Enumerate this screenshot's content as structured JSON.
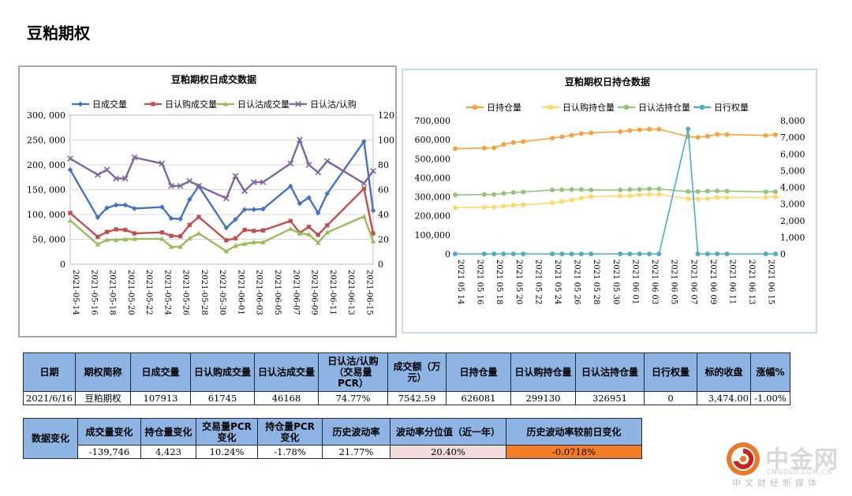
{
  "page": {
    "title": "豆粕期权"
  },
  "chart_data": [
    {
      "type": "line",
      "title": "豆粕期权日成交数据",
      "x": [
        "2021-05-14",
        "2021-05-17",
        "2021-05-18",
        "2021-05-19",
        "2021-05-20",
        "2021-05-21",
        "2021-05-24",
        "2021-05-25",
        "2021-05-26",
        "2021-05-27",
        "2021-05-28",
        "2021-05-31",
        "2021-06-01",
        "2021-06-02",
        "2021-06-03",
        "2021-06-04",
        "2021-06-07",
        "2021-06-08",
        "2021-06-09",
        "2021-06-10",
        "2021-06-11",
        "2021-06-15",
        "2021-06-16"
      ],
      "x_tick_labels": [
        "2021-05-14",
        "2021-05-16",
        "2021-05-18",
        "2021-05-20",
        "2021-05-22",
        "2021-05-24",
        "2021-05-26",
        "2021-05-28",
        "2021-05-30",
        "2021-06-01",
        "2021-06-03",
        "2021-06-05",
        "2021-06-07",
        "2021-06-09",
        "2021-06-11",
        "2021-06-13",
        "2021-06-15"
      ],
      "x_range": [
        "2021-05-14",
        "2021-06-16"
      ],
      "y_left": {
        "ticks": [
          "0",
          "50, 000",
          "100, 000",
          "150, 000",
          "200, 000",
          "250, 000",
          "300, 000"
        ],
        "ylim": [
          0,
          300000
        ]
      },
      "y_right": {
        "ticks": [
          "0",
          "20",
          "40",
          "60",
          "80",
          "100",
          "120"
        ],
        "ylim": [
          0,
          120
        ]
      },
      "legend_position": "top",
      "grid": true,
      "series": [
        {
          "name": "日成交量",
          "color": "#4472c4",
          "marker": "diamond",
          "axis": "left",
          "values": [
            190000,
            94000,
            113000,
            119000,
            119000,
            112000,
            115000,
            92000,
            91000,
            130000,
            157000,
            73000,
            90000,
            110000,
            110000,
            111000,
            157000,
            122000,
            134000,
            103000,
            142000,
            247000,
            108000
          ]
        },
        {
          "name": "日认购成交量",
          "color": "#c0504d",
          "marker": "square",
          "axis": "left",
          "values": [
            103000,
            55000,
            65000,
            70000,
            69000,
            62000,
            64000,
            57000,
            56000,
            79000,
            95000,
            48000,
            52000,
            69000,
            67000,
            68000,
            87000,
            63000,
            75000,
            59000,
            78000,
            152000,
            62000
          ]
        },
        {
          "name": "日认沽成交量",
          "color": "#9bbb59",
          "marker": "triangle",
          "axis": "left",
          "values": [
            88000,
            40000,
            49000,
            49000,
            50000,
            51000,
            51000,
            35000,
            35000,
            52000,
            62000,
            26000,
            37000,
            41000,
            44000,
            44000,
            71000,
            62000,
            60000,
            43000,
            64000,
            96000,
            46000
          ]
        },
        {
          "name": "日认沽/认购",
          "color": "#8064a2",
          "marker": "x",
          "axis": "right",
          "values": [
            85,
            72,
            76,
            69,
            69,
            86,
            81,
            63,
            63,
            67,
            63,
            53,
            71,
            59,
            66,
            66,
            81,
            100,
            80,
            74,
            83,
            65,
            75
          ]
        }
      ]
    },
    {
      "type": "line",
      "title": "豆粕期权日持仓数据",
      "x": [
        "2021-05-14",
        "2021-05-17",
        "2021-05-18",
        "2021-05-19",
        "2021-05-20",
        "2021-05-21",
        "2021-05-24",
        "2021-05-25",
        "2021-05-26",
        "2021-05-27",
        "2021-05-28",
        "2021-05-31",
        "2021-06-01",
        "2021-06-02",
        "2021-06-03",
        "2021-06-04",
        "2021-06-07",
        "2021-06-08",
        "2021-06-09",
        "2021-06-10",
        "2021-06-11",
        "2021-06-15",
        "2021-06-16"
      ],
      "x_tick_labels": [
        "2021-05-14",
        "2021-05-16",
        "2021-05-18",
        "2021-05-20",
        "2021-05-22",
        "2021-05-24",
        "2021-05-26",
        "2021-05-28",
        "2021-05-30",
        "2021-06-01",
        "2021-06-03",
        "2021-06-05",
        "2021-06-07",
        "2021-06-09",
        "2021-06-11",
        "2021-06-13",
        "2021-06-15"
      ],
      "x_range": [
        "2021-05-14",
        "2021-06-16"
      ],
      "y_left": {
        "ticks": [
          "0",
          "100,000",
          "200,000",
          "300,000",
          "400,000",
          "500,000",
          "600,000",
          "700,000"
        ],
        "ylim": [
          0,
          700000
        ]
      },
      "y_right": {
        "ticks": [
          "0",
          "1,000",
          "2,000",
          "3,000",
          "4,000",
          "5,000",
          "6,000",
          "7,000",
          "8,000"
        ],
        "ylim": [
          0,
          8000
        ]
      },
      "legend_position": "top",
      "grid": false,
      "series": [
        {
          "name": "日持仓量",
          "color": "#f7a23b",
          "marker": "circle",
          "axis": "left",
          "values": [
            553000,
            556000,
            557000,
            575000,
            585000,
            590000,
            608000,
            615000,
            623000,
            632000,
            636000,
            642000,
            648000,
            652000,
            655000,
            655000,
            616000,
            612000,
            618000,
            628000,
            627000,
            622000,
            626081
          ]
        },
        {
          "name": "日认购持仓量",
          "color": "#ffd966",
          "marker": "circle",
          "axis": "left",
          "values": [
            243000,
            245000,
            245000,
            250000,
            256000,
            258000,
            268000,
            276000,
            282000,
            292000,
            301000,
            304000,
            306000,
            310000,
            312000,
            313000,
            290000,
            288000,
            290000,
            297000,
            296000,
            297000,
            299130
          ]
        },
        {
          "name": "日认沽持仓量",
          "color": "#92c47d",
          "marker": "circle",
          "axis": "left",
          "values": [
            310000,
            312000,
            312000,
            318000,
            323000,
            325000,
            336000,
            337000,
            338000,
            338000,
            336000,
            336000,
            338000,
            339000,
            341000,
            341000,
            327000,
            328000,
            330000,
            331000,
            330000,
            326000,
            326951
          ]
        },
        {
          "name": "日行权量",
          "color": "#4bacc6",
          "marker": "circle",
          "axis": "right",
          "values": [
            0,
            0,
            0,
            0,
            0,
            0,
            0,
            0,
            0,
            0,
            0,
            0,
            0,
            0,
            0,
            0,
            7500,
            0,
            0,
            0,
            0,
            0,
            0
          ]
        }
      ]
    }
  ],
  "table1": {
    "headers": [
      "日期",
      "期权简称",
      "日成交量",
      "日认购成交量",
      "日认沽成交量",
      "日认沽/认购（交易量PCR）",
      "成交额（万元）",
      "日持仓量",
      "日认购持仓量",
      "日认沽持仓量",
      "日行权量",
      "标的收盘",
      "涨幅%"
    ],
    "row": [
      "2021/6/16",
      "豆粕期权",
      "107913",
      "61745",
      "46168",
      "74.77%",
      "7542.59",
      "626081",
      "299130",
      "326951",
      "0",
      "3,474.00",
      "-1.00%"
    ]
  },
  "table2": {
    "row_header": "数据变化",
    "headers": [
      "成交量变化",
      "持仓量变化",
      "交易量PCR变化",
      "持仓量PCR变化",
      "历史波动率",
      "波动率分位值（近一年）",
      "历史波动率较前日变化"
    ],
    "row": [
      "-139,746",
      "4,423",
      "10.24%",
      "-1.78%",
      "21.77%",
      "20.40%",
      "-0.0718%"
    ]
  },
  "logo": {
    "name": "中金网",
    "url": "CNGOLD.COM.CN",
    "slogan": "中文财经新媒体"
  }
}
